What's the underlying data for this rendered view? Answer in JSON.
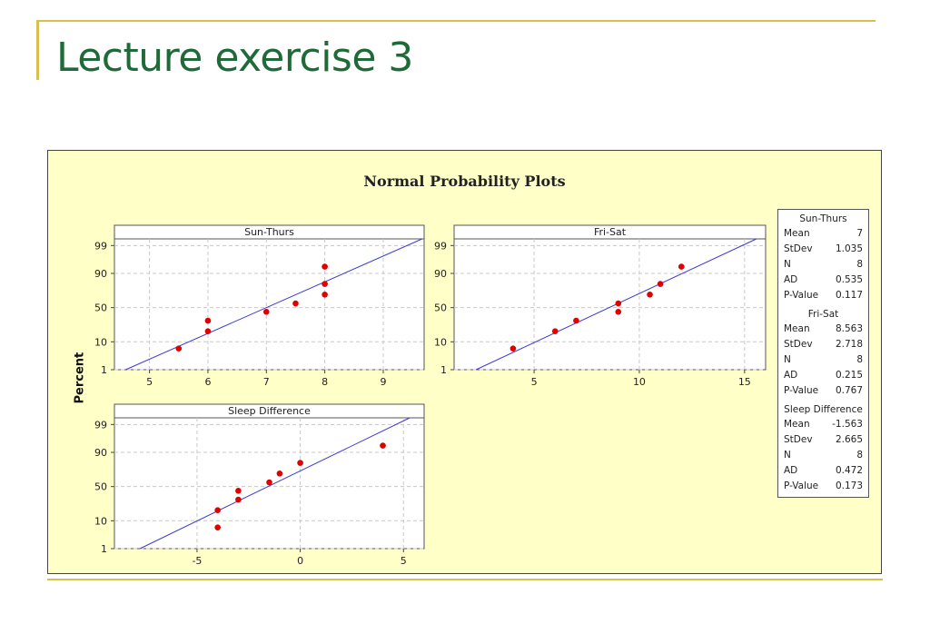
{
  "slide": {
    "title": "Lecture exercise 3"
  },
  "chart_data": {
    "type": "scatter",
    "title": "Normal Probability Plots",
    "ylabel": "Percent",
    "y_scale": "normal-probability",
    "grid": true,
    "panels": [
      {
        "name": "Sun-Thurs",
        "xlim": [
          4.4,
          9.7
        ],
        "x_ticks": [
          "5",
          "6",
          "7",
          "8",
          "9"
        ],
        "y_ticks": [
          "1",
          "10",
          "50",
          "90",
          "99"
        ],
        "points": [
          {
            "x": 5.5,
            "y": 6.25
          },
          {
            "x": 6,
            "y": 18.75
          },
          {
            "x": 6,
            "y": 31.25
          },
          {
            "x": 7,
            "y": 43.75
          },
          {
            "x": 7.5,
            "y": 56.25
          },
          {
            "x": 8,
            "y": 68.75
          },
          {
            "x": 8,
            "y": 81.25
          },
          {
            "x": 8,
            "y": 93.75
          }
        ],
        "fit": {
          "mean": 7,
          "stdev": 1.035
        }
      },
      {
        "name": "Fri-Sat",
        "xlim": [
          1.2,
          16
        ],
        "x_ticks": [
          "5",
          "10",
          "15"
        ],
        "y_ticks": [
          "1",
          "10",
          "50",
          "90",
          "99"
        ],
        "points": [
          {
            "x": 4,
            "y": 6.25
          },
          {
            "x": 6,
            "y": 18.75
          },
          {
            "x": 7,
            "y": 31.25
          },
          {
            "x": 9,
            "y": 43.75
          },
          {
            "x": 9,
            "y": 56.25
          },
          {
            "x": 10.5,
            "y": 68.75
          },
          {
            "x": 11,
            "y": 81.25
          },
          {
            "x": 12,
            "y": 93.75
          }
        ],
        "fit": {
          "mean": 8.563,
          "stdev": 2.718
        }
      },
      {
        "name": "Sleep Difference",
        "xlim": [
          -9,
          6
        ],
        "x_ticks": [
          "-5",
          "0",
          "5"
        ],
        "y_ticks": [
          "1",
          "10",
          "50",
          "90",
          "99"
        ],
        "points": [
          {
            "x": -4,
            "y": 6.25
          },
          {
            "x": -4,
            "y": 18.75
          },
          {
            "x": -3,
            "y": 31.25
          },
          {
            "x": -3,
            "y": 43.75
          },
          {
            "x": -1.5,
            "y": 56.25
          },
          {
            "x": -1,
            "y": 68.75
          },
          {
            "x": 0,
            "y": 81.25
          },
          {
            "x": 4,
            "y": 93.75
          }
        ],
        "fit": {
          "mean": -1.563,
          "stdev": 2.665
        }
      }
    ],
    "stats": [
      {
        "name": "Sun-Thurs",
        "rows": [
          {
            "label": "Mean",
            "value": "7"
          },
          {
            "label": "StDev",
            "value": "1.035"
          },
          {
            "label": "N",
            "value": "8"
          },
          {
            "label": "AD",
            "value": "0.535"
          },
          {
            "label": "P-Value",
            "value": "0.117"
          }
        ]
      },
      {
        "name": "Fri-Sat",
        "rows": [
          {
            "label": "Mean",
            "value": "8.563"
          },
          {
            "label": "StDev",
            "value": "2.718"
          },
          {
            "label": "N",
            "value": "8"
          },
          {
            "label": "AD",
            "value": "0.215"
          },
          {
            "label": "P-Value",
            "value": "0.767"
          }
        ]
      },
      {
        "name": "Sleep Difference",
        "rows": [
          {
            "label": "Mean",
            "value": "-1.563"
          },
          {
            "label": "StDev",
            "value": "2.665"
          },
          {
            "label": "N",
            "value": "8"
          },
          {
            "label": "AD",
            "value": "0.472"
          },
          {
            "label": "P-Value",
            "value": "0.173"
          }
        ]
      }
    ]
  }
}
